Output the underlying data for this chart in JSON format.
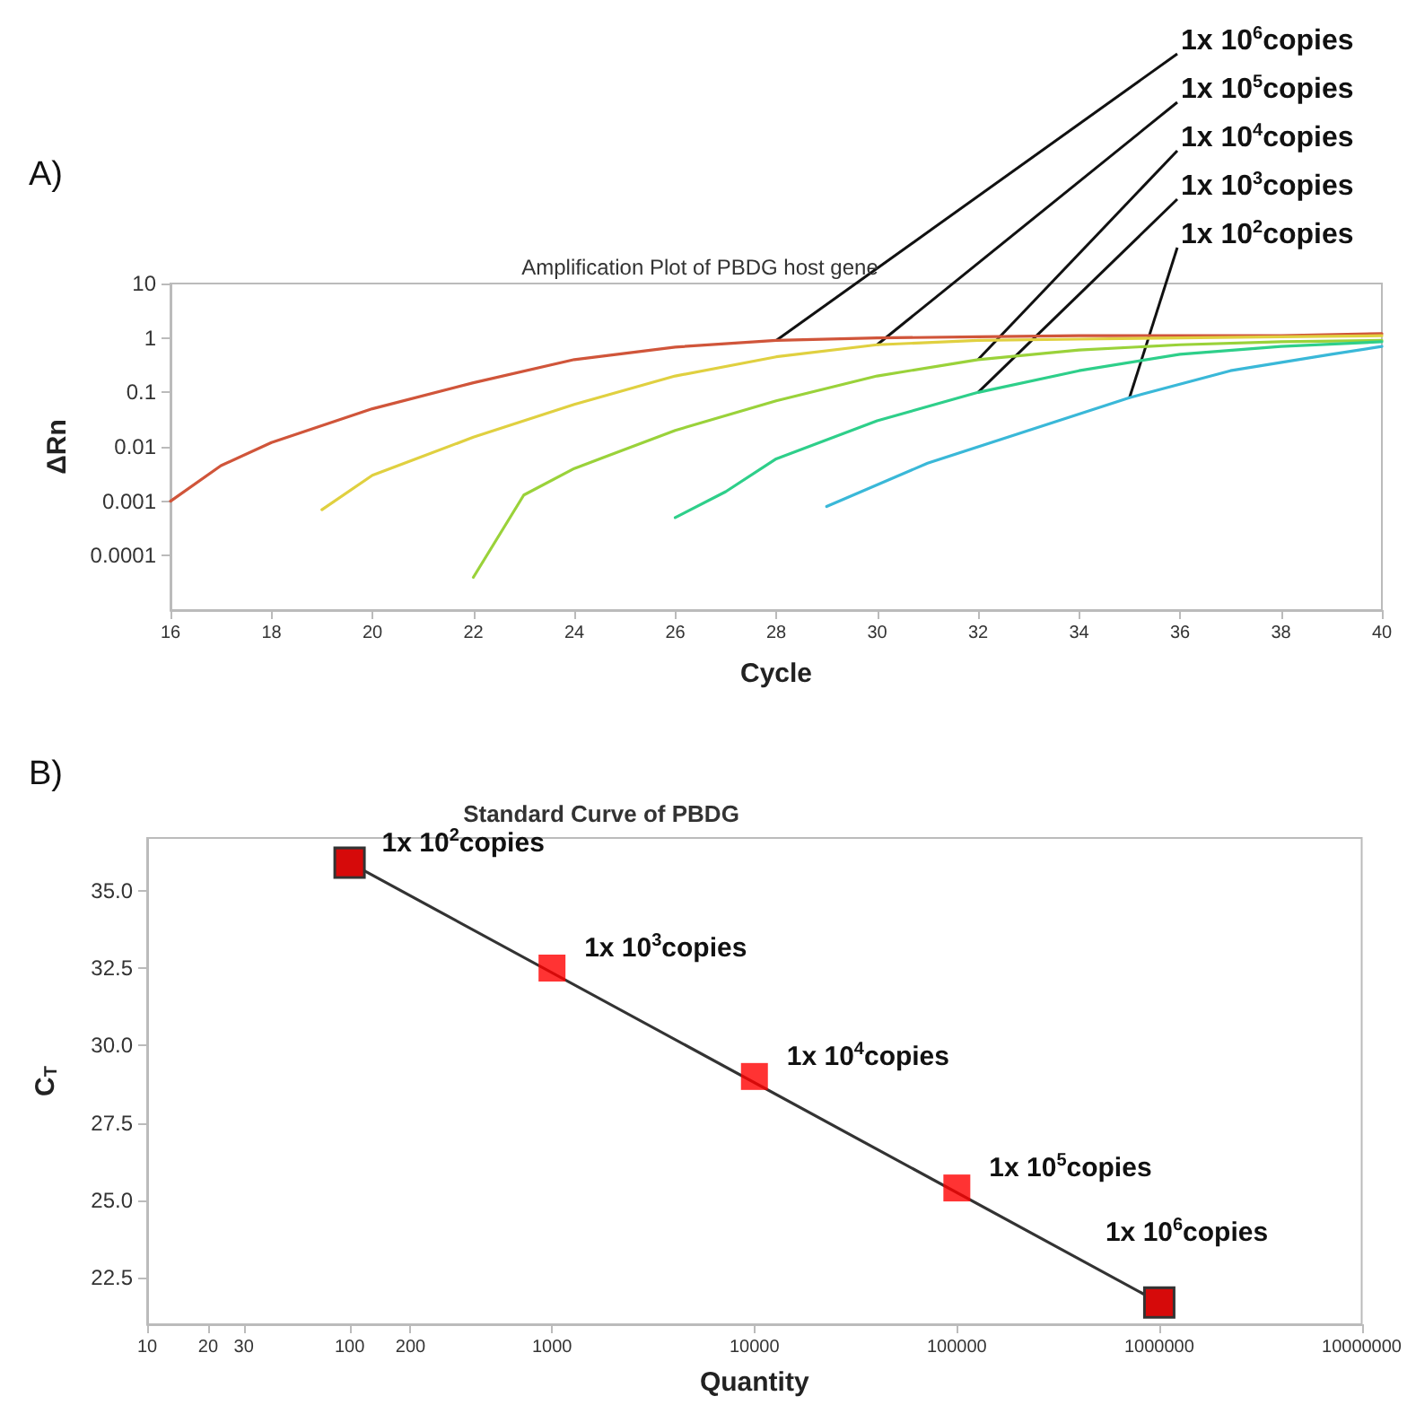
{
  "chart_data": [
    {
      "type": "line",
      "title": "Amplification Plot of PBDG host gene",
      "xlabel": "Cycle",
      "ylabel": "ΔRn",
      "log": "y",
      "marker": "none",
      "line_style": "solid",
      "xlim": [
        16,
        40
      ],
      "xticks": [
        16,
        18,
        20,
        22,
        24,
        26,
        28,
        30,
        32,
        34,
        36,
        38,
        40
      ],
      "ylim": [
        1e-05,
        10
      ],
      "yticks": [
        0.0001,
        0.001,
        0.01,
        0.1,
        1,
        10
      ],
      "annotations": [
        "A)"
      ],
      "series": [
        {
          "name": "1x 10$^{6}$copies",
          "color": "#d0553a",
          "x": [
            16,
            17,
            18,
            20,
            22,
            24,
            26,
            28,
            30,
            32,
            34,
            36,
            38,
            40
          ],
          "values": [
            0.001,
            0.0045,
            0.012,
            0.05,
            0.15,
            0.4,
            0.68,
            0.9,
            1.0,
            1.05,
            1.1,
            1.1,
            1.1,
            1.2
          ]
        },
        {
          "name": "1x 10$^{5}$copies",
          "color": "#e0d040",
          "x": [
            19,
            20,
            22,
            24,
            26,
            28,
            30,
            32,
            34,
            36,
            38,
            40
          ],
          "values": [
            0.0007,
            0.003,
            0.015,
            0.06,
            0.2,
            0.45,
            0.75,
            0.9,
            0.95,
            1.0,
            1.05,
            1.1
          ]
        },
        {
          "name": "1x 10$^{4}$copies",
          "color": "#9ad23a",
          "x": [
            22,
            23,
            24,
            26,
            28,
            30,
            32,
            34,
            36,
            38,
            40
          ],
          "values": [
            4e-05,
            0.0013,
            0.004,
            0.02,
            0.07,
            0.2,
            0.4,
            0.6,
            0.75,
            0.85,
            0.9
          ]
        },
        {
          "name": "1x 10$^{3}$copies",
          "color": "#2ecf8a",
          "x": [
            26,
            27,
            28,
            30,
            32,
            34,
            36,
            38,
            40
          ],
          "values": [
            0.0005,
            0.0015,
            0.006,
            0.03,
            0.1,
            0.25,
            0.5,
            0.7,
            0.85
          ]
        },
        {
          "name": "1x 10$^{2}$copies",
          "color": "#3ab8d8",
          "x": [
            29,
            31,
            33,
            35,
            37,
            39,
            40
          ],
          "values": [
            0.0008,
            0.005,
            0.02,
            0.08,
            0.25,
            0.5,
            0.7
          ]
        }
      ]
    },
    {
      "type": "scatter",
      "title": "Standard Curve of PBDG",
      "xlabel": "Quantity",
      "ylabel": "C$_{T}$",
      "log": "x",
      "marker": "square",
      "xlim": [
        10,
        10000000
      ],
      "xticks": [
        10,
        20,
        30,
        100,
        200,
        1000,
        10000,
        100000,
        1000000,
        10000000
      ],
      "ylim": [
        21,
        36.7
      ],
      "yticks": [
        22.5,
        {
          "value": 25,
          "label": "25.0"
        },
        27.5,
        {
          "value": 30,
          "label": "30.0"
        },
        32.5,
        {
          "value": 35,
          "label": "35.0"
        }
      ],
      "annotations": [
        "B)",
        {
          "text": "1x 10$^{2}$copies",
          "x": 100,
          "y": 35.9
        },
        {
          "text": "1x 10$^{3}$copies",
          "x": 1000,
          "y": 32.5
        },
        {
          "text": "1x 10$^{4}$copies",
          "x": 10000,
          "y": 29.0
        },
        {
          "text": "1x 10$^{5}$copies",
          "x": 100000,
          "y": 25.4
        },
        {
          "text": "1x 10$^{6}$copies",
          "x": 1000000,
          "y": 21.7
        }
      ],
      "series": [
        {
          "type": "line",
          "color": "#333333",
          "x": [
            100,
            1000000
          ],
          "values": [
            35.9,
            21.7
          ]
        },
        {
          "color": "#ff0000",
          "x": [
            100,
            1000,
            10000,
            100000,
            1000000
          ],
          "values": [
            35.9,
            32.5,
            29.0,
            25.4,
            21.7
          ]
        }
      ]
    }
  ]
}
